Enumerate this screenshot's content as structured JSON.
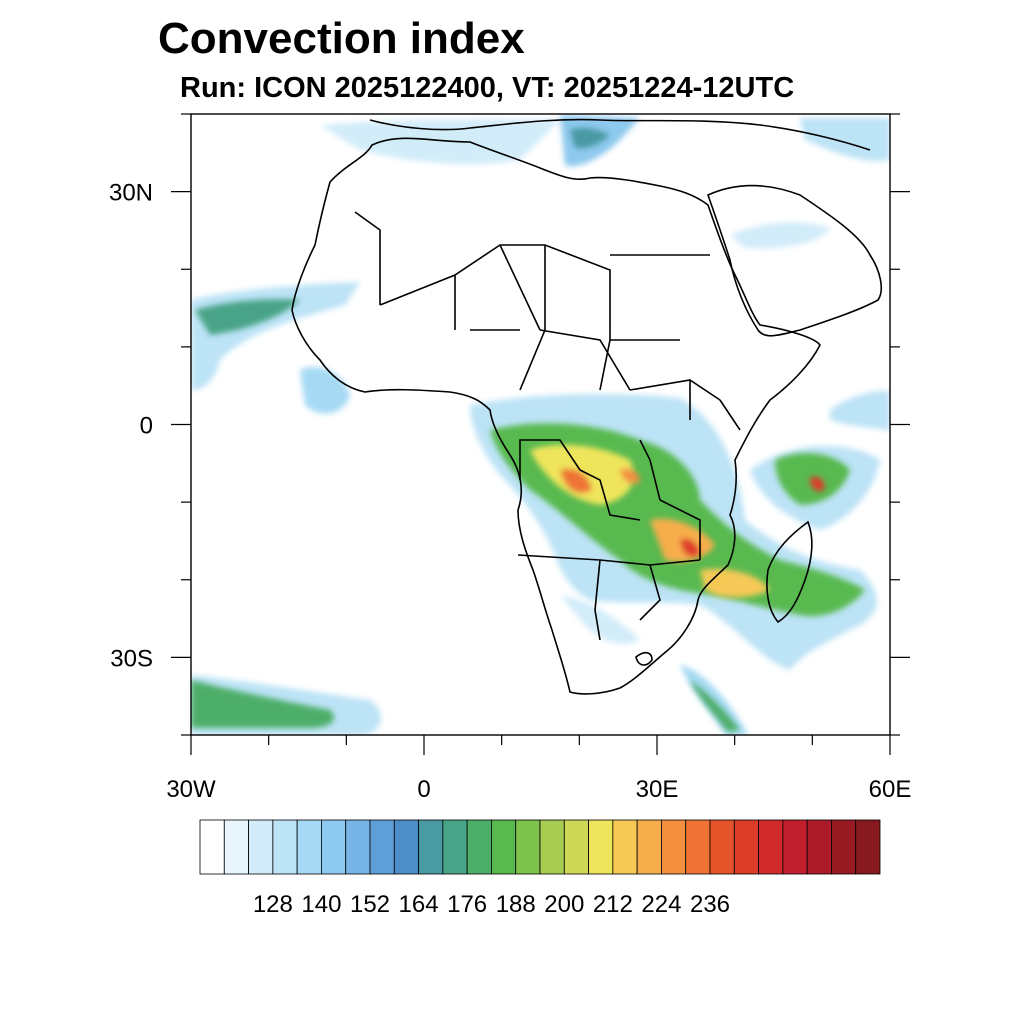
{
  "title": "Convection index",
  "subtitle": "Run: ICON 2025122400,  VT: 20251224-12UTC",
  "map": {
    "projection": "lat-lon",
    "lon_range": [
      -30,
      60
    ],
    "lat_range": [
      -40,
      40
    ],
    "x_ticks": [
      {
        "lon": -30,
        "label": "30W"
      },
      {
        "lon": 0,
        "label": "0"
      },
      {
        "lon": 30,
        "label": "30E"
      },
      {
        "lon": 60,
        "label": "60E"
      }
    ],
    "y_ticks": [
      {
        "lat": 30,
        "label": "30N"
      },
      {
        "lat": 0,
        "label": "0"
      },
      {
        "lat": -30,
        "label": "30S"
      }
    ]
  },
  "colorbar": {
    "colors": [
      "#ffffff",
      "#eaf6fd",
      "#d2ecf9",
      "#bce3f6",
      "#a6daf4",
      "#8ec9ef",
      "#76b5e6",
      "#5e9fd8",
      "#4e8ec8",
      "#4a9aa4",
      "#48a487",
      "#4dae69",
      "#59b94f",
      "#7dc24d",
      "#a7cc51",
      "#cfd856",
      "#efe55c",
      "#f6c957",
      "#f6ae4c",
      "#f38f3f",
      "#ee7334",
      "#e5532b",
      "#dd3c29",
      "#d22a2b",
      "#c11f2e",
      "#ac1b2a",
      "#981b24",
      "#861a1e"
    ],
    "labels": [
      "128",
      "140",
      "152",
      "164",
      "176",
      "188",
      "200",
      "212",
      "224",
      "236"
    ],
    "label_start_index": 2,
    "label_step": 2
  }
}
